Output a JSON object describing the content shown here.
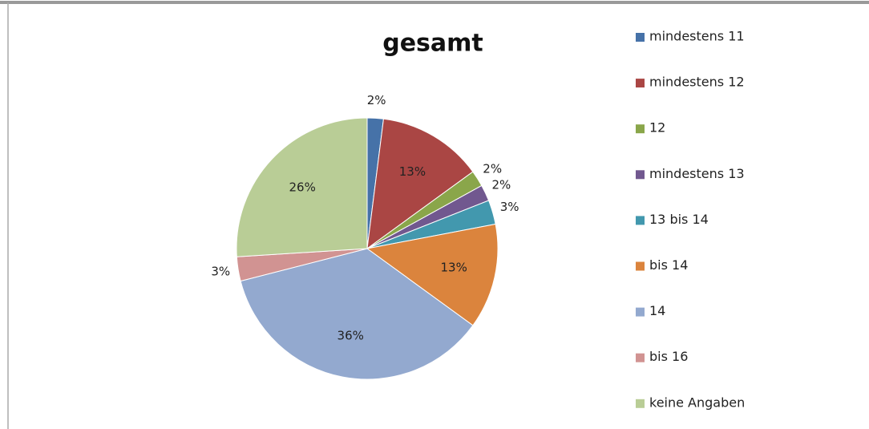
{
  "chart_data": {
    "type": "pie",
    "title": "gesamt",
    "categories": [
      "mindestens 11",
      "mindestens 12",
      "12",
      "mindestens 13",
      "13 bis 14",
      "bis 14",
      "14",
      "bis 16",
      "keine Angaben"
    ],
    "values": [
      2,
      13,
      2,
      2,
      3,
      13,
      36,
      3,
      26
    ],
    "value_labels": [
      "2%",
      "13%",
      "2%",
      "2%",
      "3%",
      "13%",
      "36%",
      "3%",
      "26%"
    ],
    "colors": [
      "#4672a8",
      "#aa4644",
      "#8aa64a",
      "#71588f",
      "#4298ae",
      "#db843d",
      "#93a9cf",
      "#d19392",
      "#b9cd96"
    ],
    "legend": "right"
  }
}
